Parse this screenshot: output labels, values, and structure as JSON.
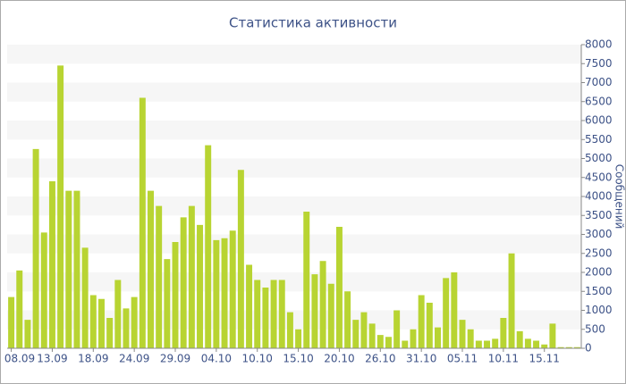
{
  "chart_data": {
    "type": "bar",
    "title": "Статистика активности",
    "y_label": "Сообщений",
    "categories": [
      "08.09",
      null,
      null,
      null,
      null,
      "13.09",
      null,
      null,
      null,
      null,
      "18.09",
      null,
      null,
      null,
      null,
      "24.09",
      null,
      null,
      null,
      null,
      "29.09",
      null,
      null,
      null,
      null,
      "04.10",
      null,
      null,
      null,
      null,
      "10.10",
      null,
      null,
      null,
      null,
      "15.10",
      null,
      null,
      null,
      null,
      "20.10",
      null,
      null,
      null,
      null,
      "26.10",
      null,
      null,
      null,
      null,
      "31.10",
      null,
      null,
      null,
      null,
      "05.11",
      null,
      null,
      null,
      null,
      "10.11",
      null,
      null,
      null,
      null,
      "15.11",
      null,
      null,
      null,
      null
    ],
    "values": [
      1350,
      2050,
      750,
      5250,
      3050,
      4400,
      7450,
      4150,
      4150,
      2650,
      1400,
      1300,
      800,
      1800,
      1050,
      1350,
      6600,
      4150,
      3750,
      2350,
      2800,
      3450,
      3750,
      3250,
      5350,
      2850,
      2900,
      3100,
      4700,
      2200,
      1800,
      1600,
      1800,
      1800,
      950,
      500,
      3600,
      1950,
      2300,
      1700,
      3200,
      1500,
      750,
      950,
      650,
      350,
      300,
      1000,
      200,
      500,
      1400,
      1200,
      550,
      1850,
      2000,
      750,
      500,
      200,
      200,
      250,
      800,
      2500,
      450,
      250,
      200,
      100,
      650,
      30,
      30,
      30
    ],
    "color": "#b8d432",
    "ylim": [
      0,
      8000
    ],
    "yticks": [
      0,
      500,
      1000,
      1500,
      2000,
      2500,
      3000,
      3500,
      4000,
      4500,
      5000,
      5500,
      6000,
      6500,
      7000,
      7500,
      8000
    ],
    "grid": true
  }
}
